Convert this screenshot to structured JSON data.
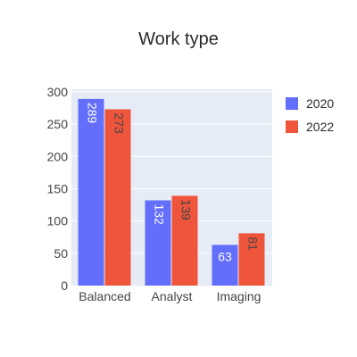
{
  "chart_data": {
    "type": "bar",
    "title": "Work type",
    "xlabel": "",
    "ylabel": "",
    "categories": [
      "Balanced",
      "Analyst",
      "Imaging"
    ],
    "series": [
      {
        "name": "2020",
        "values": [
          289,
          132,
          63
        ],
        "color": "#636efa",
        "value_labels": [
          "289",
          "132",
          "63"
        ]
      },
      {
        "name": "2022",
        "values": [
          273,
          139,
          81
        ],
        "color": "#ef553b",
        "value_labels": [
          "273",
          "139",
          "81"
        ]
      }
    ],
    "ylim": [
      0,
      304
    ],
    "yticks": [
      0,
      50,
      100,
      150,
      200,
      250,
      300
    ],
    "ytick_labels": [
      "0",
      "50",
      "100",
      "150",
      "200",
      "250",
      "300"
    ],
    "grid": true,
    "legend_position": "top-right",
    "plot_bg": "#e5ecf6",
    "grid_color": "#ffffff",
    "label_color_inside_blue": "#ffffff",
    "label_color_inside_red": "#444444"
  }
}
